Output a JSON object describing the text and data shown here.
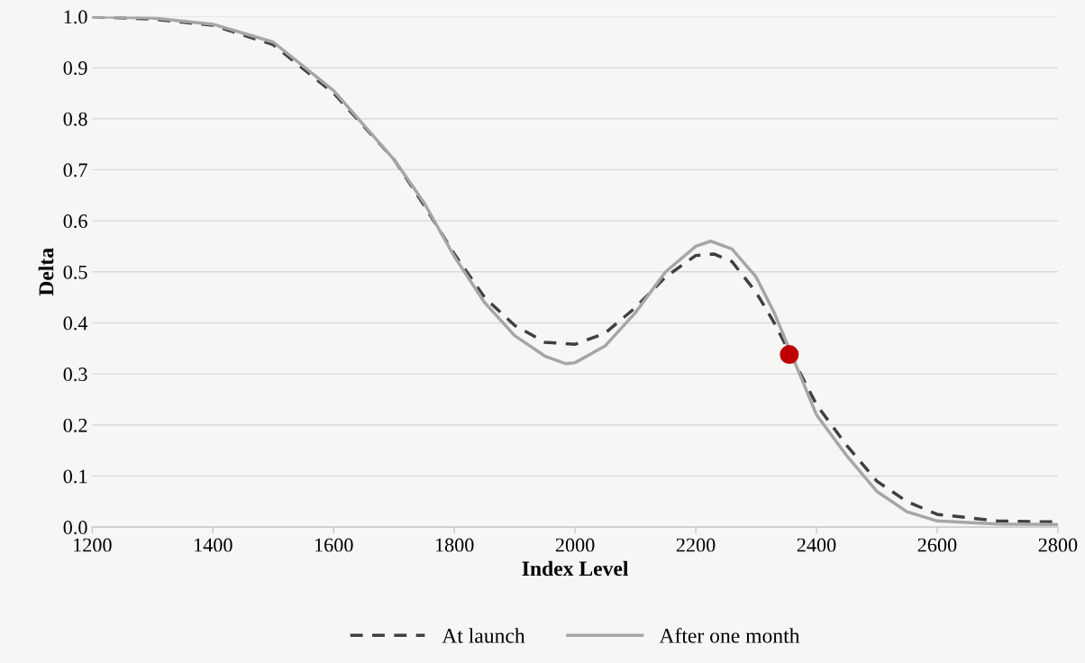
{
  "chart_data": {
    "type": "line",
    "xlabel": "Index Level",
    "ylabel": "Delta",
    "xlim": [
      1200,
      2800
    ],
    "xticks": [
      1200,
      1400,
      1600,
      1800,
      2000,
      2200,
      2400,
      2600,
      2800
    ],
    "ylim": [
      0,
      1.0
    ],
    "yticks": [
      {
        "value": 0,
        "label": "0.0"
      },
      0.1,
      0.2,
      0.3,
      0.4,
      0.5,
      0.6,
      0.7,
      0.8,
      0.9,
      {
        "value": 1.0,
        "label": "1.0"
      }
    ],
    "grid": "y",
    "legend": "bottom",
    "series": [
      {
        "name": "At launch",
        "color": "#404040",
        "line_style": "dashed",
        "x": [
          1200,
          1300,
          1400,
          1500,
          1600,
          1700,
          1750,
          1800,
          1850,
          1900,
          1950,
          2000,
          2050,
          2100,
          2150,
          2200,
          2230,
          2260,
          2300,
          2330,
          2400,
          2450,
          2500,
          2550,
          2600,
          2700,
          2800
        ],
        "values": [
          1.0,
          0.995,
          0.983,
          0.945,
          0.85,
          0.72,
          0.63,
          0.535,
          0.45,
          0.395,
          0.362,
          0.358,
          0.38,
          0.43,
          0.49,
          0.532,
          0.535,
          0.52,
          0.46,
          0.4,
          0.24,
          0.16,
          0.09,
          0.05,
          0.025,
          0.012,
          0.01
        ]
      },
      {
        "name": "After one month",
        "color": "#a6a6a6",
        "line_style": "solid",
        "x": [
          1200,
          1300,
          1400,
          1500,
          1600,
          1700,
          1750,
          1800,
          1850,
          1900,
          1950,
          1985,
          2000,
          2050,
          2100,
          2150,
          2200,
          2225,
          2260,
          2300,
          2330,
          2400,
          2450,
          2500,
          2550,
          2600,
          2700,
          2800
        ],
        "values": [
          1.0,
          0.997,
          0.985,
          0.95,
          0.855,
          0.72,
          0.635,
          0.53,
          0.44,
          0.375,
          0.335,
          0.32,
          0.322,
          0.355,
          0.42,
          0.5,
          0.55,
          0.56,
          0.545,
          0.49,
          0.42,
          0.22,
          0.14,
          0.07,
          0.03,
          0.012,
          0.006,
          0.005
        ]
      },
      {
        "type": "scatter",
        "color": "#c00000",
        "marker": "circle",
        "x": [
          2355
        ],
        "values": [
          0.338
        ]
      }
    ]
  }
}
